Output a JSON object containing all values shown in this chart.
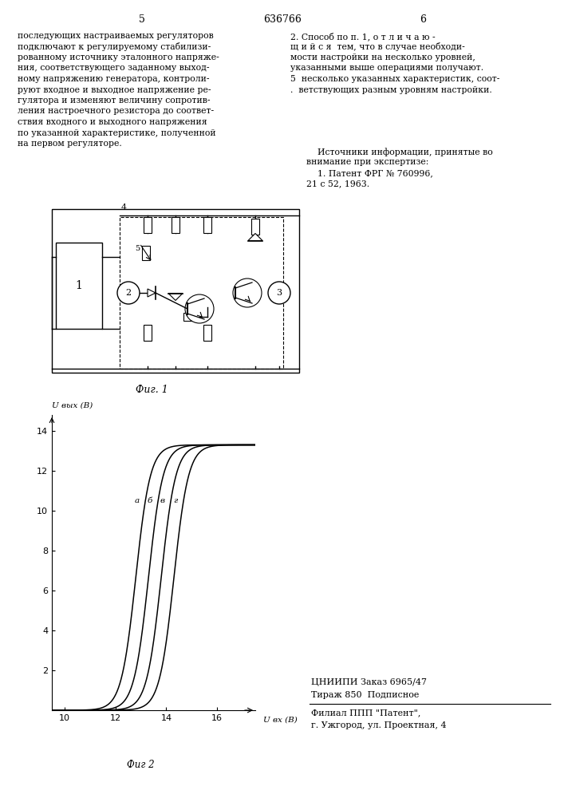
{
  "title_number": "636766",
  "page_left": "5",
  "page_right": "6",
  "text_left_lines": [
    "последующих настраиваемых регуляторов",
    "подключают к регулируемому стабилизи-",
    "рованному источнику эталонного напряже-",
    "ния, соответствующего заданному выход-",
    "ному напряжению генератора, контроли-",
    "руют входное и выходное напряжение ре-",
    "гулятора и изменяют величину сопротив-",
    "ления настроечного резистора до соответ-",
    "ствия входного и выходного напряжения",
    "по указанной характеристике, полученной",
    "на первом регуляторе."
  ],
  "text_right_lines_1": [
    "2. Способ по п. 1, о т л и ч а ю -",
    "щ и й с я  тем, что в случае необходи-",
    "мости настройки на несколько уровней,",
    "указанными выше операциями получают.",
    "5  несколько указанных характеристик, соот-",
    ".  ветствующих разным уровням настройки."
  ],
  "text_right_lines_2": [
    "    Источники информации, принятые во",
    "внимание при экспертизе:",
    "    1. Патент ФРГ № 760996,",
    "21 с 52, 1963."
  ],
  "fig1_label": "Фиг. 1",
  "fig2_label": "Фиг 2",
  "ylabel": "U вых (В)",
  "xlabel": "U вх (В)",
  "yticks": [
    2,
    4,
    6,
    8,
    10,
    12,
    14
  ],
  "xticks": [
    10,
    12,
    14,
    16
  ],
  "ylim": [
    0,
    14.8
  ],
  "xlim": [
    9.5,
    17.5
  ],
  "curve_labels": [
    "а",
    "б",
    "в",
    "г"
  ],
  "curve_midpoints": [
    12.8,
    13.3,
    13.8,
    14.3
  ],
  "curve_saturation": 13.3,
  "curve_k": 3.5,
  "bottom_text_1": "ЦНИИПИ Заказ 6965/47",
  "bottom_text_2": "Тираж 850  Подписное",
  "bottom_text_3": "Филиал ППП \"Патент\",",
  "bottom_text_4": "г. Ужгород, ул. Проектная, 4"
}
